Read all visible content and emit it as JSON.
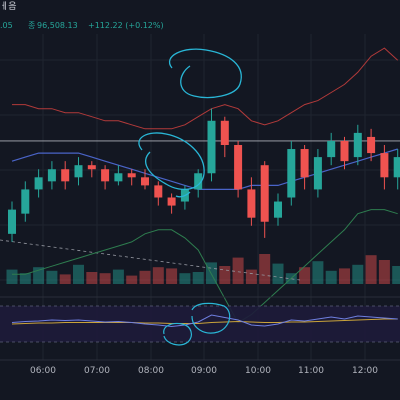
{
  "header": {
    "ticker_fragment": "ㅔ음",
    "price_fragment": ".05",
    "volume_label": "종",
    "volume_value": "96,508.13",
    "change_text": "+112.22 (+0.12%)"
  },
  "colors": {
    "background": "#131722",
    "up": "#26a69a",
    "down": "#ef5350",
    "ma_line": "#4a64c8",
    "bb_upper": "#b23a3a",
    "bb_lower": "#2e7d4f",
    "annotation": "#29b6d6",
    "rsi_line": "#6f7fe0",
    "rsi_signal": "#c9a33a"
  },
  "time_axis": {
    "labels": [
      "06:00",
      "07:00",
      "08:00",
      "09:00",
      "10:00",
      "11:00",
      "12:00"
    ]
  },
  "chart_data": {
    "type": "candlestick",
    "x": [
      "05:15",
      "05:30",
      "05:45",
      "06:00",
      "06:15",
      "06:30",
      "06:45",
      "07:00",
      "07:15",
      "07:30",
      "07:45",
      "08:00",
      "08:15",
      "08:30",
      "08:45",
      "09:00",
      "09:15",
      "09:30",
      "09:45",
      "10:00",
      "10:15",
      "10:30",
      "10:45",
      "11:00",
      "11:15",
      "11:30",
      "11:45",
      "12:00",
      "12:15",
      "12:30"
    ],
    "open": [
      90,
      95,
      101,
      103,
      106,
      104,
      107,
      106,
      103,
      105,
      104,
      102,
      99,
      98,
      101,
      105,
      118,
      112,
      101,
      107,
      94,
      99,
      111,
      101,
      109,
      113,
      109,
      114,
      110,
      104
    ],
    "close": [
      96,
      101,
      104,
      106,
      103,
      107,
      106,
      103,
      105,
      104,
      102,
      99,
      97,
      101,
      105,
      118,
      112,
      101,
      94,
      93,
      98,
      111,
      104,
      109,
      113,
      108,
      115,
      110,
      104,
      109
    ],
    "high": [
      98,
      103,
      106,
      108,
      108,
      109,
      108,
      107,
      107,
      106,
      106,
      103,
      100,
      102,
      106,
      121,
      119,
      113,
      104,
      108,
      100,
      113,
      112,
      111,
      115,
      114,
      117,
      116,
      112,
      111
    ],
    "low": [
      88,
      93,
      99,
      101,
      101,
      102,
      104,
      101,
      102,
      102,
      101,
      97,
      95,
      96,
      99,
      103,
      109,
      99,
      92,
      89,
      92,
      97,
      101,
      99,
      107,
      106,
      107,
      108,
      101,
      101
    ],
    "volume": [
      12,
      9,
      14,
      11,
      8,
      16,
      10,
      9,
      12,
      7,
      11,
      14,
      13,
      9,
      10,
      18,
      15,
      22,
      12,
      25,
      17,
      9,
      14,
      19,
      11,
      13,
      16,
      24,
      20,
      15
    ],
    "ma": [
      108,
      109,
      110,
      110,
      110,
      110,
      109,
      108,
      107,
      106,
      105,
      104,
      103,
      102,
      101,
      101,
      101,
      101,
      102,
      102,
      102,
      103,
      104,
      105,
      106,
      107,
      108,
      109,
      110,
      111
    ],
    "bb_upper": [
      122,
      122,
      121,
      121,
      120,
      120,
      119,
      118,
      118,
      117,
      116,
      116,
      116,
      117,
      119,
      121,
      122,
      121,
      118,
      117,
      118,
      120,
      122,
      123,
      125,
      127,
      130,
      134,
      136,
      133
    ],
    "bb_lower": [
      80,
      80,
      81,
      82,
      83,
      84,
      85,
      86,
      87,
      88,
      90,
      91,
      91,
      89,
      86,
      80,
      74,
      68,
      70,
      73,
      76,
      79,
      82,
      85,
      88,
      91,
      95,
      96,
      96,
      95
    ],
    "rsi": [
      55,
      57,
      58,
      60,
      59,
      60,
      58,
      56,
      57,
      55,
      52,
      50,
      47,
      50,
      56,
      70,
      65,
      60,
      50,
      48,
      52,
      60,
      58,
      62,
      66,
      62,
      68,
      66,
      64,
      62
    ],
    "rsi_signal": [
      52,
      53,
      54,
      54,
      55,
      55,
      55,
      55,
      55,
      55,
      54,
      54,
      53,
      53,
      53,
      55,
      56,
      57,
      56,
      55,
      55,
      56,
      56,
      57,
      58,
      59,
      60,
      61,
      62,
      62
    ],
    "price_range": [
      86,
      138
    ],
    "rsi_range": [
      0,
      100
    ],
    "reference_line": 113
  }
}
